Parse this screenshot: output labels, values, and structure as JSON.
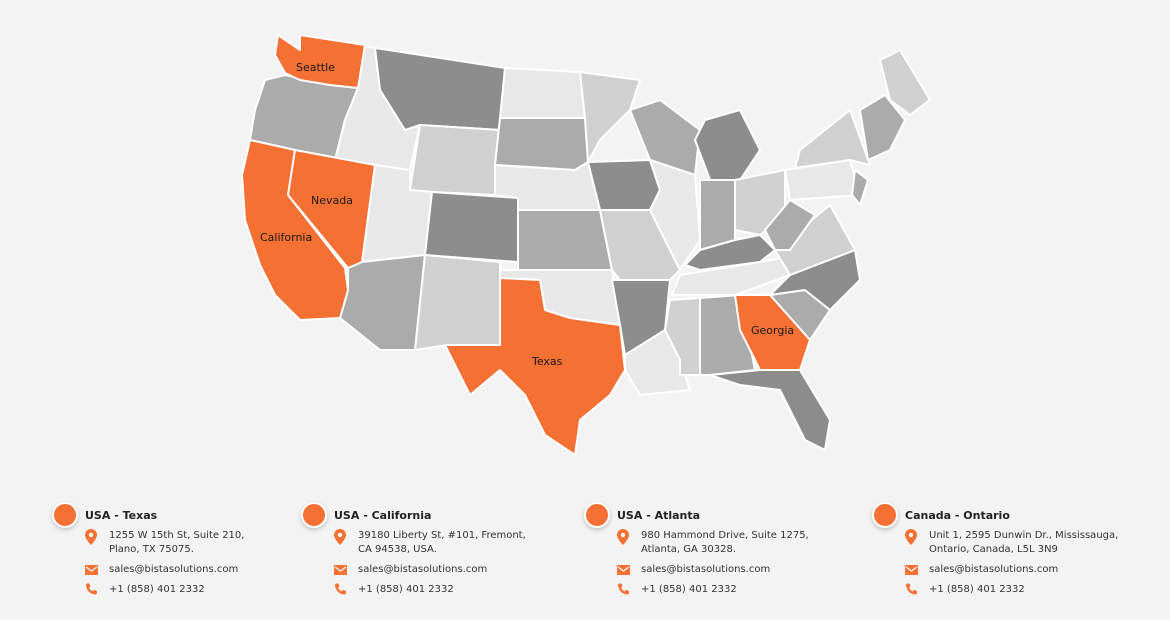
{
  "map": {
    "highlight_color": "#f47133",
    "labels": {
      "seattle": "Seattle",
      "nevada": "Nevada",
      "california": "California",
      "texas": "Texas",
      "georgia": "Georgia"
    }
  },
  "offices": [
    {
      "title": "USA - Texas",
      "address_line1": "1255 W 15th St, Suite 210,",
      "address_line2": "Plano, TX 75075.",
      "email": "sales@bistasolutions.com",
      "phone": "+1 (858) 401 2332"
    },
    {
      "title": "USA - California",
      "address_line1": "39180 Liberty St, #101, Fremont,",
      "address_line2": "CA 94538, USA.",
      "email": "sales@bistasolutions.com",
      "phone": "+1 (858) 401 2332"
    },
    {
      "title": "USA - Atlanta",
      "address_line1": "980 Hammond Drive, Suite 1275,",
      "address_line2": "Atlanta, GA 30328.",
      "email": "sales@bistasolutions.com",
      "phone": "+1 (858) 401 2332"
    },
    {
      "title": "Canada - Ontario",
      "address_line1": "Unit 1, 2595 Dunwin Dr., Mississauga,",
      "address_line2": "Ontario, Canada, L5L 3N9",
      "email": "sales@bistasolutions.com",
      "phone": "+1 (858) 401 2332"
    }
  ],
  "icons": {
    "address": "map-pin-icon",
    "email": "envelope-icon",
    "phone": "phone-icon"
  }
}
